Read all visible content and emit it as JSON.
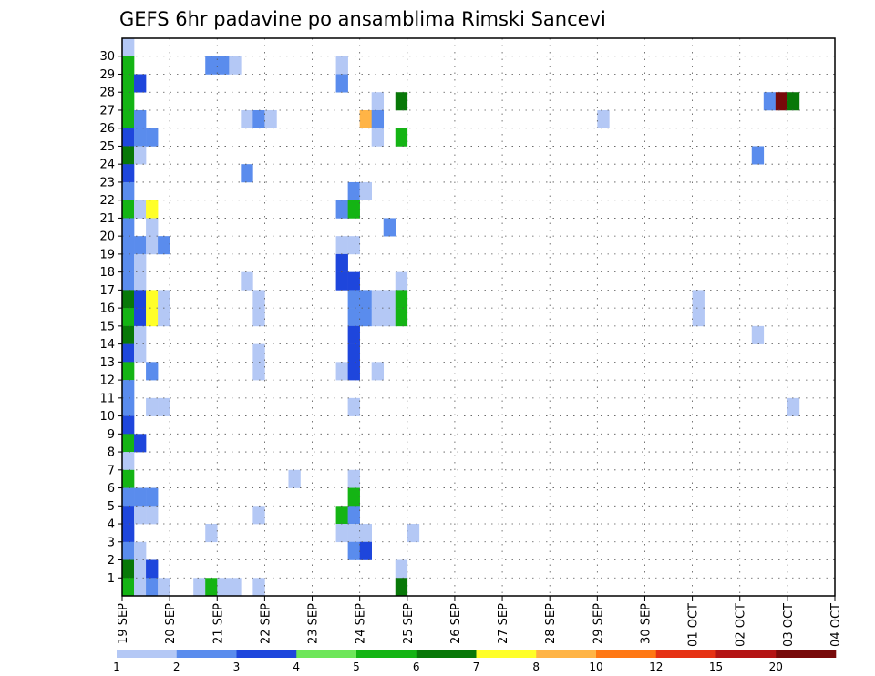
{
  "chart_data": {
    "type": "heatmap",
    "title": "GEFS 6hr padavine po ansamblima Rimski Sancevi",
    "xlabel": "",
    "ylabel": "",
    "x_start": "2024-09-19T00:00",
    "x_ticks": [
      "19 SEP",
      "20 SEP",
      "21 SEP",
      "22 SEP",
      "23 SEP",
      "24 SEP",
      "25 SEP",
      "26 SEP",
      "27 SEP",
      "28 SEP",
      "29 SEP",
      "30 SEP",
      "01 OCT",
      "02 OCT",
      "03 OCT",
      "04 OCT"
    ],
    "y_ticks": [
      "1",
      "2",
      "3",
      "4",
      "5",
      "6",
      "7",
      "8",
      "9",
      "10",
      "11",
      "12",
      "13",
      "14",
      "15",
      "16",
      "17",
      "18",
      "19",
      "20",
      "21",
      "22",
      "23",
      "24",
      "25",
      "26",
      "27",
      "28",
      "29",
      "30"
    ],
    "members": 30,
    "step_hours": 6,
    "steps_total": 60,
    "grid": true,
    "legend_position": "bottom",
    "legend_labels": [
      "1",
      "2",
      "3",
      "4",
      "5",
      "6",
      "7",
      "8",
      "10",
      "12",
      "15",
      "20"
    ],
    "legend_colors": [
      "#b4c8f5",
      "#5a8ced",
      "#1e46dc",
      "#6ee65a",
      "#14b414",
      "#087808",
      "#ffff28",
      "#ffb446",
      "#ff7814",
      "#e63214",
      "#b41414",
      "#780a0a"
    ],
    "cells": [
      [
        "2024-09-19T06:00",
        30,
        1
      ],
      [
        "2024-09-19T06:00",
        29,
        5
      ],
      [
        "2024-09-19T06:00",
        28,
        5
      ],
      [
        "2024-09-19T06:00",
        27,
        5
      ],
      [
        "2024-09-19T06:00",
        26,
        5
      ],
      [
        "2024-09-19T06:00",
        25,
        3
      ],
      [
        "2024-09-19T06:00",
        24,
        6
      ],
      [
        "2024-09-19T06:00",
        23,
        3
      ],
      [
        "2024-09-19T06:00",
        22,
        2
      ],
      [
        "2024-09-19T06:00",
        21,
        5
      ],
      [
        "2024-09-19T06:00",
        20,
        2
      ],
      [
        "2024-09-19T06:00",
        19,
        2
      ],
      [
        "2024-09-19T06:00",
        18,
        2
      ],
      [
        "2024-09-19T06:00",
        17,
        2
      ],
      [
        "2024-09-19T06:00",
        16,
        6
      ],
      [
        "2024-09-19T06:00",
        15,
        5
      ],
      [
        "2024-09-19T06:00",
        14,
        6
      ],
      [
        "2024-09-19T06:00",
        13,
        3
      ],
      [
        "2024-09-19T06:00",
        12,
        5
      ],
      [
        "2024-09-19T06:00",
        11,
        2
      ],
      [
        "2024-09-19T06:00",
        10,
        2
      ],
      [
        "2024-09-19T06:00",
        9,
        3
      ],
      [
        "2024-09-19T06:00",
        8,
        5
      ],
      [
        "2024-09-19T06:00",
        7,
        1
      ],
      [
        "2024-09-19T06:00",
        6,
        5
      ],
      [
        "2024-09-19T06:00",
        5,
        2
      ],
      [
        "2024-09-19T06:00",
        4,
        3
      ],
      [
        "2024-09-19T06:00",
        3,
        3
      ],
      [
        "2024-09-19T06:00",
        2,
        2
      ],
      [
        "2024-09-19T06:00",
        1,
        6
      ],
      [
        "2024-09-19T06:00",
        0,
        5
      ],
      [
        "2024-09-19T12:00",
        28,
        3
      ],
      [
        "2024-09-19T12:00",
        26,
        2
      ],
      [
        "2024-09-19T12:00",
        25,
        2
      ],
      [
        "2024-09-19T12:00",
        24,
        1
      ],
      [
        "2024-09-19T12:00",
        21,
        1
      ],
      [
        "2024-09-19T12:00",
        19,
        2
      ],
      [
        "2024-09-19T12:00",
        18,
        1
      ],
      [
        "2024-09-19T12:00",
        17,
        1
      ],
      [
        "2024-09-19T12:00",
        16,
        3
      ],
      [
        "2024-09-19T12:00",
        15,
        3
      ],
      [
        "2024-09-19T12:00",
        14,
        1
      ],
      [
        "2024-09-19T12:00",
        13,
        1
      ],
      [
        "2024-09-19T12:00",
        8,
        3
      ],
      [
        "2024-09-19T12:00",
        5,
        2
      ],
      [
        "2024-09-19T12:00",
        4,
        1
      ],
      [
        "2024-09-19T12:00",
        2,
        1
      ],
      [
        "2024-09-19T12:00",
        1,
        1
      ],
      [
        "2024-09-19T12:00",
        0,
        1
      ],
      [
        "2024-09-19T18:00",
        25,
        2
      ],
      [
        "2024-09-19T18:00",
        21,
        7
      ],
      [
        "2024-09-19T18:00",
        20,
        1
      ],
      [
        "2024-09-19T18:00",
        19,
        1
      ],
      [
        "2024-09-19T18:00",
        16,
        7
      ],
      [
        "2024-09-19T18:00",
        15,
        7
      ],
      [
        "2024-09-19T18:00",
        12,
        2
      ],
      [
        "2024-09-19T18:00",
        10,
        1
      ],
      [
        "2024-09-19T18:00",
        5,
        2
      ],
      [
        "2024-09-19T18:00",
        4,
        1
      ],
      [
        "2024-09-19T18:00",
        1,
        3
      ],
      [
        "2024-09-19T18:00",
        0,
        2
      ],
      [
        "2024-09-20T00:00",
        19,
        2
      ],
      [
        "2024-09-20T00:00",
        16,
        1
      ],
      [
        "2024-09-20T00:00",
        15,
        1
      ],
      [
        "2024-09-20T00:00",
        10,
        1
      ],
      [
        "2024-09-20T00:00",
        0,
        1
      ],
      [
        "2024-09-20T18:00",
        0,
        1
      ],
      [
        "2024-09-21T00:00",
        29,
        2
      ],
      [
        "2024-09-21T00:00",
        3,
        1
      ],
      [
        "2024-09-21T00:00",
        0,
        5
      ],
      [
        "2024-09-21T06:00",
        29,
        2
      ],
      [
        "2024-09-21T06:00",
        0,
        1
      ],
      [
        "2024-09-21T12:00",
        29,
        1
      ],
      [
        "2024-09-21T12:00",
        0,
        1
      ],
      [
        "2024-09-21T18:00",
        26,
        1
      ],
      [
        "2024-09-21T18:00",
        23,
        2
      ],
      [
        "2024-09-21T18:00",
        17,
        1
      ],
      [
        "2024-09-22T00:00",
        26,
        2
      ],
      [
        "2024-09-22T00:00",
        16,
        1
      ],
      [
        "2024-09-22T00:00",
        15,
        1
      ],
      [
        "2024-09-22T00:00",
        13,
        1
      ],
      [
        "2024-09-22T00:00",
        12,
        1
      ],
      [
        "2024-09-22T00:00",
        4,
        1
      ],
      [
        "2024-09-22T00:00",
        0,
        1
      ],
      [
        "2024-09-22T06:00",
        26,
        1
      ],
      [
        "2024-09-22T18:00",
        6,
        1
      ],
      [
        "2024-09-23T18:00",
        29,
        1
      ],
      [
        "2024-09-23T18:00",
        28,
        2
      ],
      [
        "2024-09-23T18:00",
        21,
        2
      ],
      [
        "2024-09-23T18:00",
        19,
        1
      ],
      [
        "2024-09-23T18:00",
        18,
        3
      ],
      [
        "2024-09-23T18:00",
        17,
        3
      ],
      [
        "2024-09-23T18:00",
        12,
        1
      ],
      [
        "2024-09-23T18:00",
        4,
        5
      ],
      [
        "2024-09-23T18:00",
        3,
        1
      ],
      [
        "2024-09-24T00:00",
        22,
        2
      ],
      [
        "2024-09-24T00:00",
        21,
        5
      ],
      [
        "2024-09-24T00:00",
        19,
        1
      ],
      [
        "2024-09-24T00:00",
        17,
        3
      ],
      [
        "2024-09-24T00:00",
        16,
        2
      ],
      [
        "2024-09-24T00:00",
        15,
        2
      ],
      [
        "2024-09-24T00:00",
        14,
        3
      ],
      [
        "2024-09-24T00:00",
        13,
        3
      ],
      [
        "2024-09-24T00:00",
        12,
        3
      ],
      [
        "2024-09-24T00:00",
        10,
        1
      ],
      [
        "2024-09-24T00:00",
        6,
        1
      ],
      [
        "2024-09-24T00:00",
        5,
        5
      ],
      [
        "2024-09-24T00:00",
        4,
        2
      ],
      [
        "2024-09-24T00:00",
        3,
        1
      ],
      [
        "2024-09-24T00:00",
        2,
        2
      ],
      [
        "2024-09-24T06:00",
        26,
        9
      ],
      [
        "2024-09-24T06:00",
        22,
        1
      ],
      [
        "2024-09-24T06:00",
        16,
        2
      ],
      [
        "2024-09-24T06:00",
        15,
        2
      ],
      [
        "2024-09-24T06:00",
        3,
        1
      ],
      [
        "2024-09-24T06:00",
        2,
        3
      ],
      [
        "2024-09-24T12:00",
        27,
        1
      ],
      [
        "2024-09-24T12:00",
        26,
        2
      ],
      [
        "2024-09-24T12:00",
        25,
        1
      ],
      [
        "2024-09-24T12:00",
        16,
        1
      ],
      [
        "2024-09-24T12:00",
        15,
        1
      ],
      [
        "2024-09-24T12:00",
        12,
        1
      ],
      [
        "2024-09-24T18:00",
        20,
        2
      ],
      [
        "2024-09-24T18:00",
        16,
        1
      ],
      [
        "2024-09-24T18:00",
        15,
        1
      ],
      [
        "2024-09-25T00:00",
        27,
        6
      ],
      [
        "2024-09-25T00:00",
        25,
        5
      ],
      [
        "2024-09-25T00:00",
        17,
        1
      ],
      [
        "2024-09-25T00:00",
        16,
        5
      ],
      [
        "2024-09-25T00:00",
        15,
        5
      ],
      [
        "2024-09-25T00:00",
        1,
        1
      ],
      [
        "2024-09-25T00:00",
        0,
        6
      ],
      [
        "2024-09-25T06:00",
        3,
        1
      ],
      [
        "2024-09-29T06:00",
        26,
        1
      ],
      [
        "2024-10-01T06:00",
        16,
        1
      ],
      [
        "2024-10-01T06:00",
        15,
        1
      ],
      [
        "2024-10-02T12:00",
        24,
        2
      ],
      [
        "2024-10-02T12:00",
        14,
        1
      ],
      [
        "2024-10-02T18:00",
        27,
        2
      ],
      [
        "2024-10-03T00:00",
        27,
        20
      ],
      [
        "2024-10-03T06:00",
        27,
        6
      ],
      [
        "2024-10-03T06:00",
        10,
        1
      ]
    ]
  }
}
